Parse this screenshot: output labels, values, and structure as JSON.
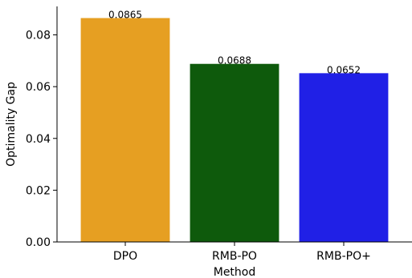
{
  "chart_data": {
    "type": "bar",
    "categories": [
      "DPO",
      "RMB-PO",
      "RMB-PO+"
    ],
    "values": [
      0.0865,
      0.0688,
      0.0652
    ],
    "data_labels": [
      "0.0865",
      "0.0688",
      "0.0652"
    ],
    "colors": [
      "#e69f22",
      "#0e5a0c",
      "#2020e6"
    ],
    "xlabel": "Method",
    "ylabel": "Optimality Gap",
    "ylim": [
      0,
      0.091
    ],
    "yticks": [
      0.0,
      0.02,
      0.04,
      0.06,
      0.08
    ],
    "ytick_labels": [
      "0.00",
      "0.02",
      "0.04",
      "0.06",
      "0.08"
    ],
    "grid": false,
    "legend": "none"
  }
}
